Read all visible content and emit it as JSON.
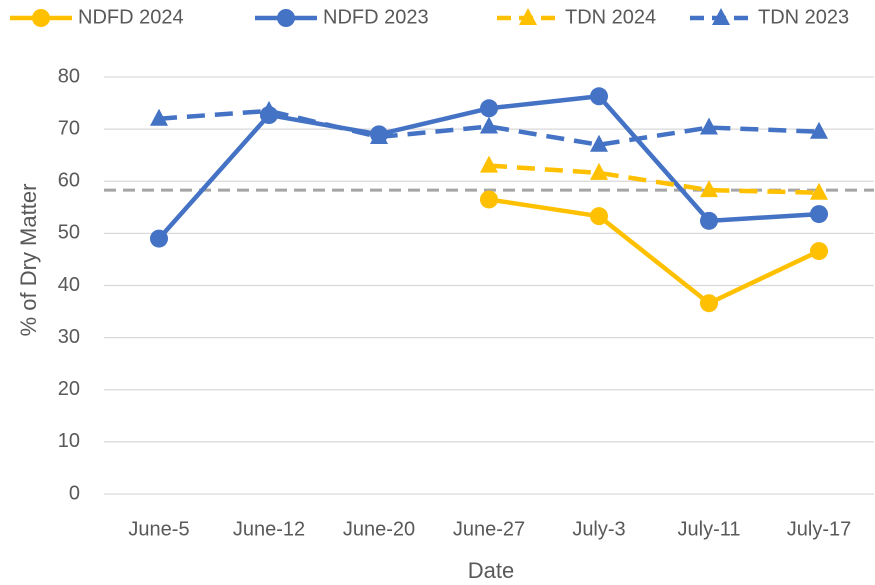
{
  "chart_data": {
    "type": "line",
    "y_label": "% of Dry Matter",
    "x_label": "Date",
    "categories": [
      "June-5",
      "June-12",
      "June-20",
      "June-27",
      "July-3",
      "July-11",
      "July-17"
    ],
    "series": [
      {
        "name": "NDFD 2024",
        "color": "#FFC000",
        "dash": false,
        "marker": "circle",
        "values": [
          null,
          null,
          null,
          56.5,
          53.3,
          36.6,
          46.6
        ]
      },
      {
        "name": "NDFD 2023",
        "color": "#4472C4",
        "dash": false,
        "marker": "circle",
        "values": [
          49,
          72.7,
          69,
          74,
          76.3,
          52.4,
          53.7
        ]
      },
      {
        "name": "TDN 2024",
        "color": "#FFC000",
        "dash": true,
        "marker": "triangle",
        "values": [
          null,
          null,
          null,
          63,
          61.6,
          58.3,
          57.8
        ]
      },
      {
        "name": "TDN 2023",
        "color": "#4472C4",
        "dash": true,
        "marker": "triangle",
        "values": [
          72,
          73.5,
          68.5,
          70.5,
          67,
          70.3,
          69.5
        ]
      }
    ],
    "reference_line": {
      "value": 58.3,
      "color": "#A5A5A5"
    },
    "ylim": [
      0,
      80
    ],
    "yticks": [
      0,
      10,
      20,
      30,
      40,
      50,
      60,
      70,
      80
    ],
    "grid": true,
    "legend": "top"
  }
}
